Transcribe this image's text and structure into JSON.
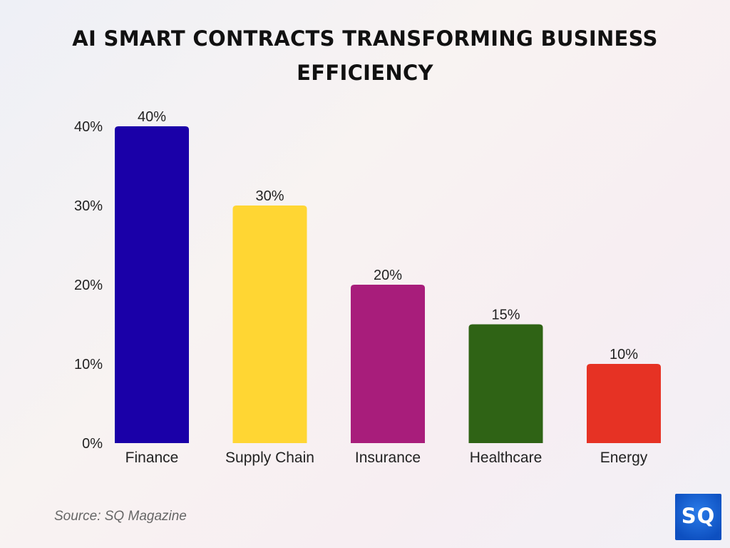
{
  "chart_data": {
    "type": "bar",
    "title": "AI SMART CONTRACTS TRANSFORMING BUSINESS EFFICIENCY",
    "categories": [
      "Finance",
      "Supply Chain",
      "Insurance",
      "Healthcare",
      "Energy"
    ],
    "values": [
      40,
      30,
      20,
      15,
      10
    ],
    "data_labels": [
      "40%",
      "30%",
      "20%",
      "15%",
      "10%"
    ],
    "colors": [
      "#1a00a8",
      "#ffd633",
      "#a81d7b",
      "#2f6315",
      "#e63224"
    ],
    "ylim": [
      0,
      40
    ],
    "yticks": [
      0,
      10,
      20,
      30,
      40
    ],
    "ytick_labels": [
      "0%",
      "10%",
      "20%",
      "30%",
      "40%"
    ],
    "xlabel": "",
    "ylabel": "",
    "grid": false,
    "legend": "none"
  },
  "source": "Source: SQ Magazine",
  "logo_text": "SQ"
}
